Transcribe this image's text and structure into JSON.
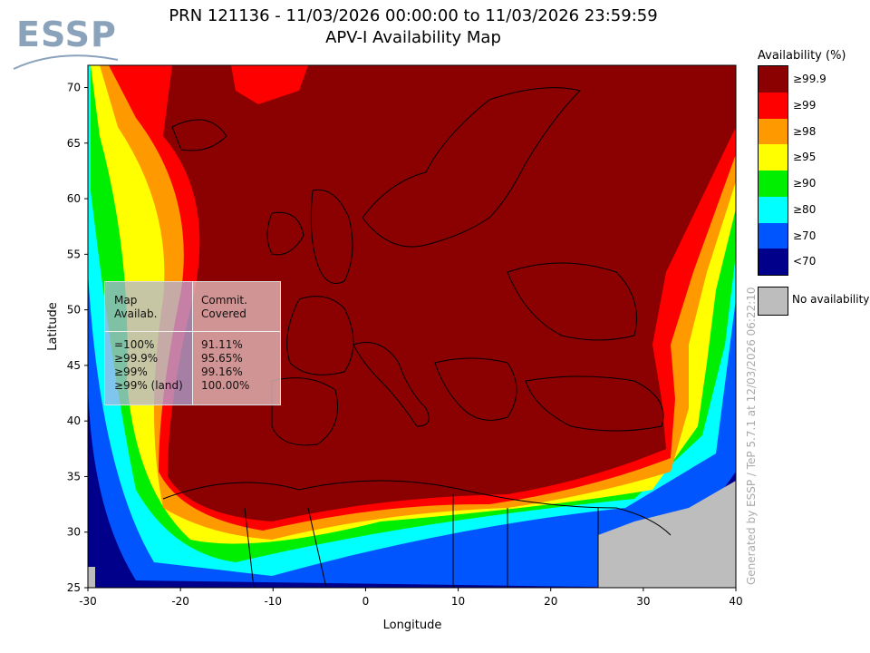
{
  "title": {
    "line1": "PRN 121136 - 11/03/2026 00:00:00 to 11/03/2026 23:59:59",
    "line2": "APV-I Availability Map"
  },
  "logo": {
    "text": "ESSP"
  },
  "axes": {
    "xlabel": "Longitude",
    "ylabel": "Latitude",
    "xticks": [
      "-30",
      "-20",
      "-10",
      "0",
      "10",
      "20",
      "30",
      "40"
    ],
    "yticks": [
      "25",
      "30",
      "35",
      "40",
      "45",
      "50",
      "55",
      "60",
      "65",
      "70"
    ],
    "xlim": [
      -30,
      40
    ],
    "ylim": [
      25,
      72
    ]
  },
  "legend": {
    "title": "Availability (%)",
    "items": [
      {
        "label": "≥99.9",
        "color": "#8b0000"
      },
      {
        "label": "≥99",
        "color": "#ff0000"
      },
      {
        "label": "≥98",
        "color": "#ff9900"
      },
      {
        "label": "≥95",
        "color": "#ffff00"
      },
      {
        "label": "≥90",
        "color": "#00ee00"
      },
      {
        "label": "≥80",
        "color": "#00ffff"
      },
      {
        "label": "≥70",
        "color": "#0055ff"
      },
      {
        "label": "<70",
        "color": "#00008b"
      }
    ],
    "no_availability": {
      "label": "No availability",
      "color": "#bdbdbd"
    }
  },
  "stats": {
    "col1_header": "Map\nAvailab.",
    "col2_header": "Commit.\nCovered",
    "col1_rows": "=100%\n≥99.9%\n≥99%\n≥99% (land)",
    "col2_rows": "91.11%\n95.65%\n99.16%\n100.00%"
  },
  "credit": "Generated by ESSP / TeP 5.7.1 at 12/03/2026 06:22:10"
}
